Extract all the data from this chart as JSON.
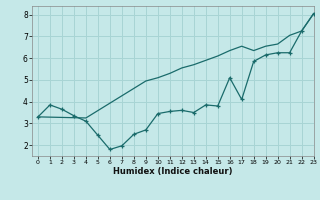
{
  "xlabel": "Humidex (Indice chaleur)",
  "background_color": "#c5e8e8",
  "grid_color": "#a8d4d4",
  "line_color": "#1a6b6b",
  "xlim": [
    -0.5,
    23
  ],
  "ylim": [
    1.5,
    8.4
  ],
  "xticks": [
    0,
    1,
    2,
    3,
    4,
    5,
    6,
    7,
    8,
    9,
    10,
    11,
    12,
    13,
    14,
    15,
    16,
    17,
    18,
    19,
    20,
    21,
    22,
    23
  ],
  "yticks": [
    2,
    3,
    4,
    5,
    6,
    7,
    8
  ],
  "line1_x": [
    0,
    1,
    2,
    3,
    4,
    5,
    6,
    7,
    8,
    9,
    10,
    11,
    12,
    13,
    14,
    15,
    16,
    17,
    18,
    19,
    20,
    21,
    22,
    23
  ],
  "line1_y": [
    3.3,
    3.85,
    3.65,
    3.35,
    3.1,
    2.45,
    1.8,
    1.97,
    2.5,
    2.7,
    3.45,
    3.55,
    3.6,
    3.5,
    3.85,
    3.8,
    5.1,
    4.1,
    5.85,
    6.15,
    6.25,
    6.25,
    7.25,
    8.05
  ],
  "line2_x": [
    0,
    4,
    9,
    10,
    11,
    12,
    13,
    14,
    15,
    16,
    17,
    18,
    19,
    20,
    21,
    22,
    23
  ],
  "line2_y": [
    3.3,
    3.25,
    4.95,
    5.1,
    5.3,
    5.55,
    5.7,
    5.9,
    6.1,
    6.35,
    6.55,
    6.35,
    6.55,
    6.65,
    7.05,
    7.25,
    8.05
  ]
}
